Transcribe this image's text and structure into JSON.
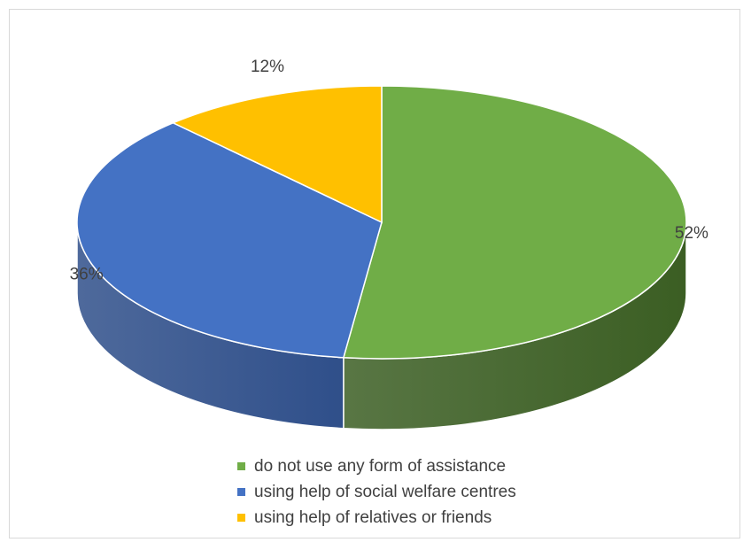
{
  "chart_data": {
    "type": "pie",
    "title": "",
    "slices": [
      {
        "label": "do not use any form of assistance",
        "value": 52,
        "value_label": "52%",
        "color": "#70ad47",
        "side_color": "#3b5e23"
      },
      {
        "label": "using help of social welfare centres",
        "value": 36,
        "value_label": "36%",
        "color": "#4472c4",
        "side_color": "#2f4f8a"
      },
      {
        "label": "using help of relatives or friends",
        "value": 12,
        "value_label": "12%",
        "color": "#ffc000",
        "side_color": "#b38600"
      }
    ],
    "style": "3d",
    "legend_position": "bottom"
  }
}
